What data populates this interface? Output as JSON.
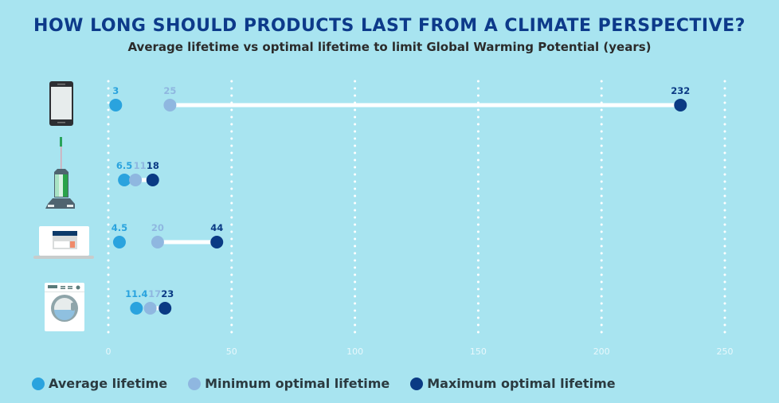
{
  "colors": {
    "background": "#a8e4f0",
    "title": "#0d3a8a",
    "average": "#2aa3de",
    "minimum": "#8fb7e0",
    "maximum": "#0a3a84",
    "connector": "#ffffff",
    "grid": "#ffffff"
  },
  "chart_data": {
    "type": "dumbbell",
    "title": "HOW LONG SHOULD PRODUCTS LAST FROM A CLIMATE PERSPECTIVE?",
    "subtitle": "Average lifetime vs optimal lifetime to limit Global Warming Potential (years)",
    "xlim": [
      0,
      250
    ],
    "xticks": [
      "0",
      "50",
      "100",
      "150",
      "200",
      "250"
    ],
    "grid": true,
    "legend_position": "bottom-left",
    "series": [
      {
        "name": "Average lifetime",
        "key": "average"
      },
      {
        "name": "Minimum optimal lifetime",
        "key": "minimum"
      },
      {
        "name": "Maximum optimal lifetime",
        "key": "maximum"
      }
    ],
    "rows": [
      {
        "icon": "smartphone-icon",
        "average": 3,
        "minimum": 25,
        "maximum": 232,
        "labels": [
          "3",
          "25",
          "232"
        ]
      },
      {
        "icon": "vacuum-cleaner-icon",
        "average": 6.5,
        "minimum": 11,
        "maximum": 18,
        "labels": [
          "6.5",
          "11",
          "18"
        ]
      },
      {
        "icon": "laptop-icon",
        "average": 4.5,
        "minimum": 20,
        "maximum": 44,
        "labels": [
          "4.5",
          "20",
          "44"
        ]
      },
      {
        "icon": "washing-machine-icon",
        "average": 11.4,
        "minimum": 17,
        "maximum": 23,
        "labels": [
          "11.4",
          "17",
          "23"
        ]
      }
    ]
  }
}
